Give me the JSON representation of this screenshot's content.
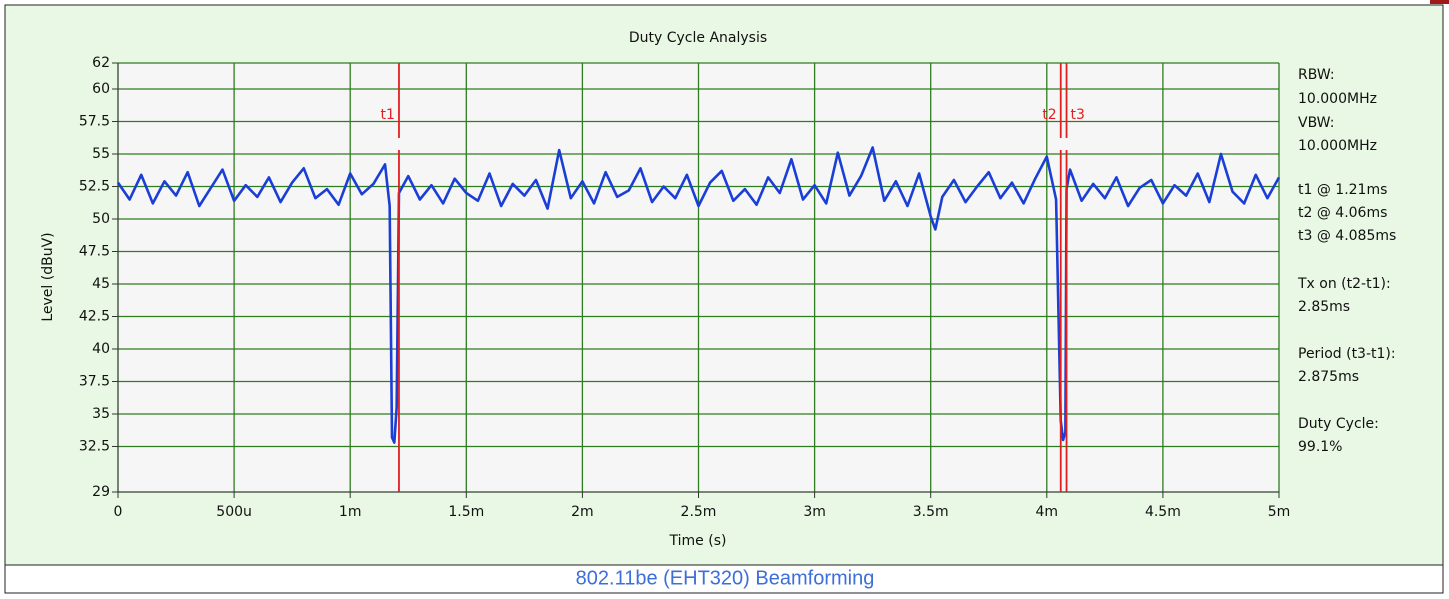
{
  "chart_data": {
    "type": "line",
    "title": "Duty Cycle Analysis",
    "x_label": "Time (s)",
    "y_label": "Level (dBuV)",
    "caption": "802.11be (EHT320) Beamforming",
    "xlim": [
      0,
      0.005
    ],
    "ylim": [
      29,
      62
    ],
    "xticks": [
      0,
      {
        "value": 0.0005,
        "label": "500u"
      },
      {
        "value": 0.001,
        "label": "1m"
      },
      {
        "value": 0.0015,
        "label": "1.5m"
      },
      {
        "value": 0.002,
        "label": "2m"
      },
      {
        "value": 0.0025,
        "label": "2.5m"
      },
      {
        "value": 0.003,
        "label": "3m"
      },
      {
        "value": 0.0035,
        "label": "3.5m"
      },
      {
        "value": 0.004,
        "label": "4m"
      },
      {
        "value": 0.0045,
        "label": "4.5m"
      },
      {
        "value": 0.005,
        "label": "5m"
      }
    ],
    "yticks": [
      62,
      60,
      57.5,
      55,
      52.5,
      50,
      47.5,
      45,
      42.5,
      40,
      37.5,
      35,
      32.5,
      29
    ],
    "grid": true,
    "x": [
      0,
      5e-05,
      0.0001,
      0.00015,
      0.0002,
      0.00025,
      0.0003,
      0.00035,
      0.0004,
      0.00045,
      0.0005,
      0.00055,
      0.0006,
      0.00065,
      0.0007,
      0.00075,
      0.0008,
      0.00085,
      0.0009,
      0.00095,
      0.001,
      0.00105,
      0.0011,
      0.00115,
      0.00117,
      0.00118,
      0.00119,
      0.0012,
      0.00121,
      0.00125,
      0.0013,
      0.00135,
      0.0014,
      0.00145,
      0.0015,
      0.00155,
      0.0016,
      0.00165,
      0.0017,
      0.00175,
      0.0018,
      0.00185,
      0.0019,
      0.00195,
      0.002,
      0.00205,
      0.0021,
      0.00215,
      0.0022,
      0.00225,
      0.0023,
      0.00235,
      0.0024,
      0.00245,
      0.0025,
      0.00255,
      0.0026,
      0.00265,
      0.0027,
      0.00275,
      0.0028,
      0.00285,
      0.0029,
      0.00295,
      0.003,
      0.00305,
      0.0031,
      0.00315,
      0.0032,
      0.00325,
      0.0033,
      0.00335,
      0.0034,
      0.00345,
      0.0035,
      0.00352,
      0.00355,
      0.0036,
      0.00365,
      0.0037,
      0.00375,
      0.0038,
      0.00385,
      0.0039,
      0.00395,
      0.004,
      0.00404,
      0.00406,
      0.00407,
      0.00408,
      0.004085,
      0.0041,
      0.00415,
      0.0042,
      0.00425,
      0.0043,
      0.00435,
      0.0044,
      0.00445,
      0.0045,
      0.00455,
      0.0046,
      0.00465,
      0.0047,
      0.00475,
      0.0048,
      0.00485,
      0.0049,
      0.00495,
      0.005
    ],
    "series": [
      {
        "color": "#1a3fd6",
        "values": [
          52.8,
          51.5,
          53.4,
          51.2,
          52.9,
          51.8,
          53.6,
          51.0,
          52.4,
          53.8,
          51.4,
          52.6,
          51.7,
          53.2,
          51.3,
          52.8,
          53.9,
          51.6,
          52.3,
          51.1,
          53.5,
          51.9,
          52.7,
          54.2,
          51.0,
          33.2,
          32.8,
          35.5,
          52.0,
          53.3,
          51.5,
          52.6,
          51.2,
          53.1,
          52.0,
          51.4,
          53.5,
          51.0,
          52.7,
          51.8,
          53.0,
          50.8,
          55.3,
          51.6,
          52.9,
          51.2,
          53.6,
          51.7,
          52.2,
          53.9,
          51.3,
          52.5,
          51.6,
          53.4,
          51.0,
          52.8,
          53.7,
          51.4,
          52.3,
          51.1,
          53.2,
          52.0,
          54.6,
          51.5,
          52.6,
          51.2,
          55.1,
          51.8,
          53.3,
          55.5,
          51.4,
          52.9,
          51.0,
          53.5,
          50.2,
          49.2,
          51.7,
          53.0,
          51.3,
          52.5,
          53.6,
          51.6,
          52.8,
          51.2,
          53.1,
          54.8,
          51.5,
          34.5,
          33.0,
          33.6,
          52.3,
          53.8,
          51.4,
          52.7,
          51.6,
          53.2,
          51.0,
          52.4,
          53.0,
          51.2,
          52.6,
          51.8,
          53.5,
          51.3,
          55.0,
          52.1,
          51.2,
          53.4,
          51.6,
          53.2
        ]
      }
    ],
    "cursors": [
      {
        "name": "t1",
        "x": 0.00121,
        "color": "#e02020"
      },
      {
        "name": "t2",
        "x": 0.00406,
        "color": "#e02020"
      },
      {
        "name": "t3",
        "x": 0.004085,
        "color": "#e02020"
      }
    ],
    "side_text": [
      "RBW:",
      "10.000MHz",
      "VBW:",
      "10.000MHz",
      "t1 @ 1.21ms",
      "t2 @ 4.06ms",
      "t3 @ 4.085ms",
      "Tx on (t2-t1):",
      "2.85ms",
      "Period (t3-t1):",
      "2.875ms",
      "Duty Cycle:",
      "99.1%"
    ]
  }
}
